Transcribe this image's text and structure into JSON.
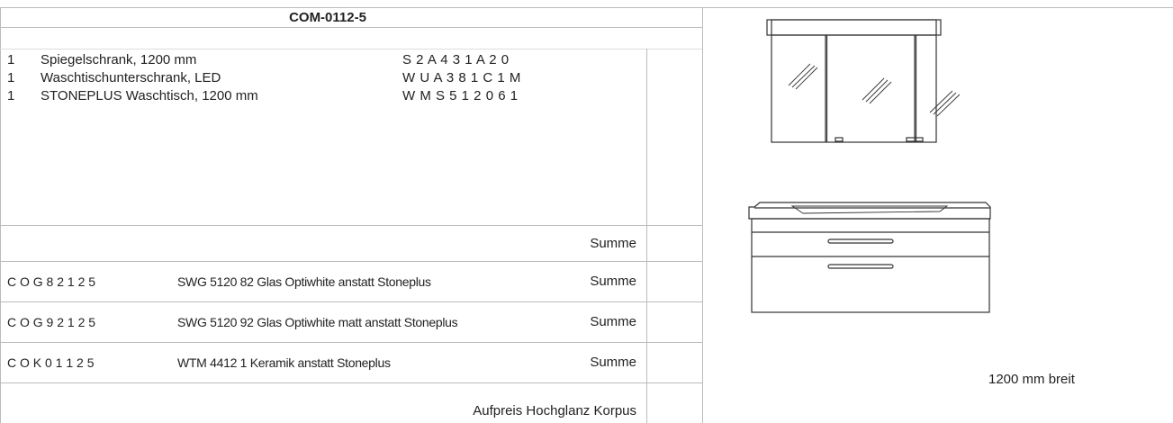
{
  "title": "COM-0112-5",
  "items": [
    {
      "qty": "1",
      "description": "Spiegelschrank, 1200 mm",
      "code": "S 2 A 4 3 1 A 2 0"
    },
    {
      "qty": "1",
      "description": "Waschtischunterschrank, LED",
      "code": "W U A 3 8 1 C 1 M"
    },
    {
      "qty": "1",
      "description": "STONEPLUS Waschtisch, 1200 mm",
      "code": "W M S 5 1 2 0 6 1"
    }
  ],
  "sum_label": "Summe",
  "options": [
    {
      "code": "C O G 8 2 1 2 5",
      "description": "SWG 5120 82 Glas Optiwhite anstatt Stoneplus",
      "label": "Summe"
    },
    {
      "code": "C O G 9 2 1 2 5",
      "description": "SWG 5120 92 Glas Optiwhite matt anstatt Stoneplus",
      "label": "Summe"
    },
    {
      "code": "C O K 0 1 1 2 5",
      "description": "WTM 4412 1 Keramik anstatt Stoneplus",
      "label": "Summe"
    }
  ],
  "surcharge": "Aufpreis Hochglanz Korpus",
  "width_note": "1200 mm breit"
}
